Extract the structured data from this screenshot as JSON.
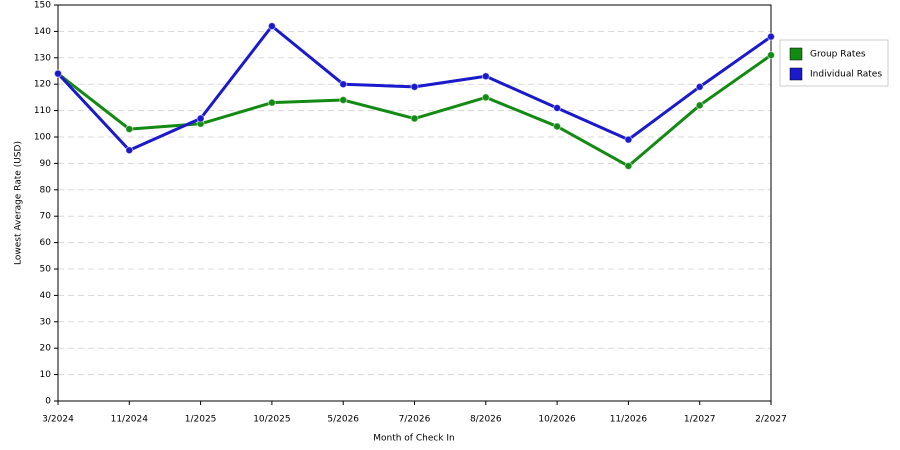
{
  "chart_data": {
    "type": "line",
    "xlabel": "Month of Check In",
    "ylabel": "Lowest Average Rate (USD)",
    "categories": [
      "3/2024",
      "11/2024",
      "1/2025",
      "10/2025",
      "5/2026",
      "7/2026",
      "8/2026",
      "10/2026",
      "11/2026",
      "1/2027",
      "2/2027"
    ],
    "series": [
      {
        "name": "Group Rates",
        "color": "#138a13",
        "values": [
          124,
          103,
          105,
          113,
          114,
          107,
          115,
          104,
          89,
          112,
          131
        ]
      },
      {
        "name": "Individual Rates",
        "color": "#1a1acc",
        "values": [
          124,
          95,
          107,
          142,
          120,
          119,
          123,
          111,
          99,
          119,
          138
        ]
      }
    ],
    "ylim": [
      0,
      150
    ],
    "yticks": [
      0,
      10,
      20,
      30,
      40,
      50,
      60,
      70,
      80,
      90,
      100,
      110,
      120,
      130,
      140,
      150
    ],
    "grid": true,
    "legend": "right"
  }
}
